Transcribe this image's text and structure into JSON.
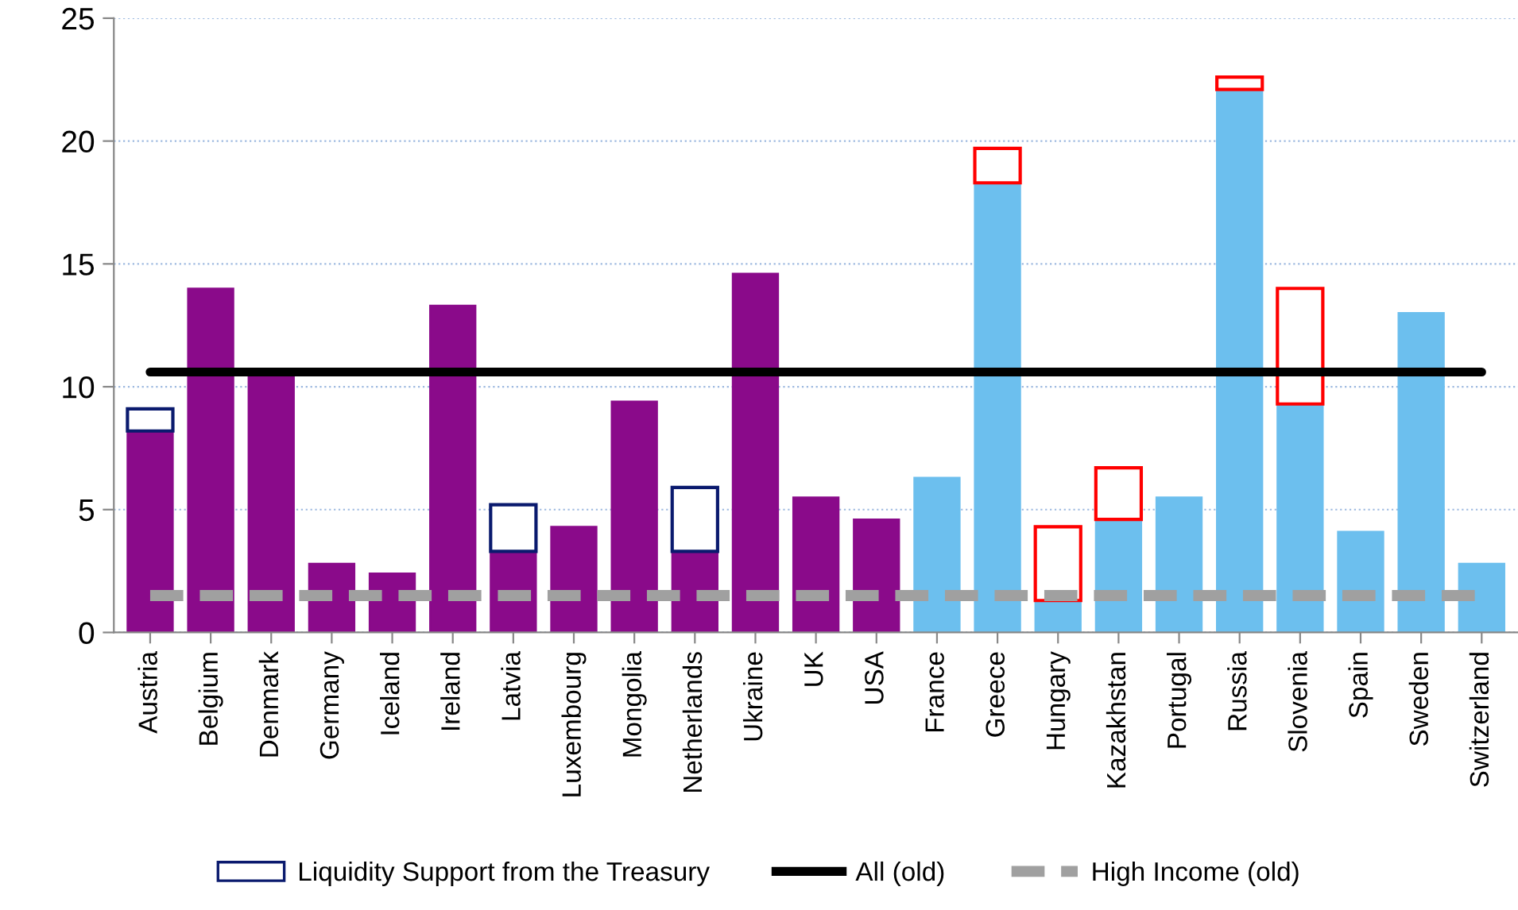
{
  "chart_data": {
    "type": "bar",
    "stacked": true,
    "categories": [
      "Austria",
      "Belgium",
      "Denmark",
      "Germany",
      "Iceland",
      "Ireland",
      "Latvia",
      "Luxembourg",
      "Mongolia",
      "Netherlands",
      "Ukraine",
      "UK",
      "USA",
      "France",
      "Greece",
      "Hungary",
      "Kazakhstan",
      "Portugal",
      "Russia",
      "Slovenia",
      "Spain",
      "Sweden",
      "Switzerland"
    ],
    "series": [
      {
        "colors": [
          "#8a0a8a",
          "#8a0a8a",
          "#8a0a8a",
          "#8a0a8a",
          "#8a0a8a",
          "#8a0a8a",
          "#8a0a8a",
          "#8a0a8a",
          "#8a0a8a",
          "#8a0a8a",
          "#8a0a8a",
          "#8a0a8a",
          "#8a0a8a",
          "#6cbfee",
          "#6cbfee",
          "#6cbfee",
          "#6cbfee",
          "#6cbfee",
          "#6cbfee",
          "#6cbfee",
          "#6cbfee",
          "#6cbfee",
          "#6cbfee"
        ],
        "values": [
          8.2,
          14.0,
          10.4,
          2.8,
          2.4,
          13.3,
          3.3,
          4.3,
          9.4,
          3.3,
          14.6,
          5.5,
          4.6,
          6.3,
          18.3,
          1.3,
          4.6,
          5.5,
          22.1,
          9.3,
          4.1,
          13.0,
          2.8
        ]
      },
      {
        "name": "Liquidity Support from the Treasury",
        "colors": [
          "#0a1a6e",
          "#0a1a6e",
          "#0a1a6e",
          "#0a1a6e",
          "#0a1a6e",
          "#0a1a6e",
          "#0a1a6e",
          "#0a1a6e",
          "#0a1a6e",
          "#0a1a6e",
          "#0a1a6e",
          "#0a1a6e",
          "#0a1a6e",
          "#ff0000",
          "#ff0000",
          "#ff0000",
          "#ff0000",
          "#ff0000",
          "#ff0000",
          "#ff0000",
          "#ff0000",
          "#ff0000",
          "#ff0000"
        ],
        "values": [
          0.9,
          null,
          null,
          null,
          null,
          null,
          1.9,
          null,
          null,
          2.6,
          null,
          null,
          null,
          null,
          1.4,
          3.0,
          2.1,
          null,
          0.5,
          4.7,
          null,
          null,
          null
        ]
      },
      {
        "name": "All (old)",
        "type": "line",
        "color": "#000000",
        "line_style": "solid",
        "values": [
          10.6,
          10.6,
          10.6,
          10.6,
          10.6,
          10.6,
          10.6,
          10.6,
          10.6,
          10.6,
          10.6,
          10.6,
          10.6,
          10.6,
          10.6,
          10.6,
          10.6,
          10.6,
          10.6,
          10.6,
          10.6,
          10.6,
          10.6
        ]
      },
      {
        "name": "High Income (old)",
        "type": "line",
        "color": "#a0a0a0",
        "line_style": "dashed",
        "values": [
          1.5,
          1.5,
          1.5,
          1.5,
          1.5,
          1.5,
          1.5,
          1.5,
          1.5,
          1.5,
          1.5,
          1.5,
          1.5,
          1.5,
          1.5,
          1.5,
          1.5,
          1.5,
          1.5,
          1.5,
          1.5,
          1.5,
          1.5
        ]
      }
    ],
    "ylim": [
      0,
      25
    ],
    "yticks": [
      0,
      5,
      10,
      15,
      20,
      25
    ],
    "grid": "y",
    "legend": "bottom"
  }
}
